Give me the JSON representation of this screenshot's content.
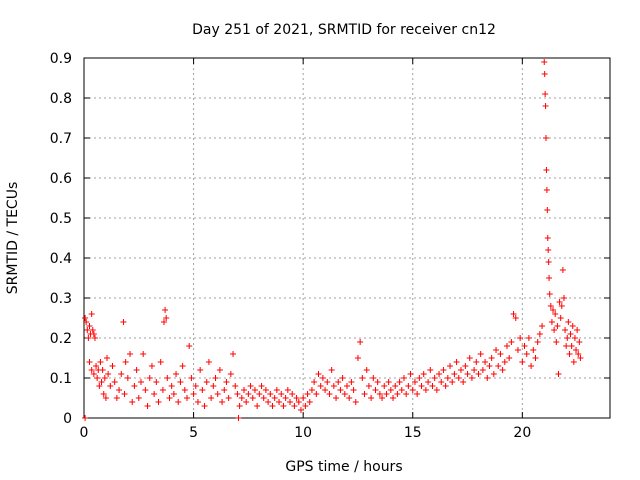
{
  "chart_data": {
    "type": "scatter",
    "title": "Day 251 of 2021, SRMTID for receiver cn12",
    "xlabel": "GPS time / hours",
    "ylabel": "SRMTID / TECUs",
    "xlim": [
      0,
      24
    ],
    "ylim": [
      0,
      0.9
    ],
    "xticks": [
      0,
      5,
      10,
      15,
      20
    ],
    "yticks": [
      0,
      0.1,
      0.2,
      0.3,
      0.4,
      0.5,
      0.6,
      0.7,
      0.8,
      0.9
    ],
    "xtick_labels": [
      "0",
      "5",
      "10",
      "15",
      "20"
    ],
    "ytick_labels": [
      "0",
      "0.1",
      "0.2",
      "0.3",
      "0.4",
      "0.5",
      "0.6",
      "0.7",
      "0.8",
      "0.9"
    ],
    "grid": true,
    "marker": "+",
    "series": [
      {
        "name": "SRMTID",
        "color": "#ff0000",
        "points": [
          [
            0.05,
            0.25
          ],
          [
            0.1,
            0.24
          ],
          [
            0.15,
            0.22
          ],
          [
            0.2,
            0.2
          ],
          [
            0.25,
            0.23
          ],
          [
            0.3,
            0.21
          ],
          [
            0.35,
            0.26
          ],
          [
            0.4,
            0.22
          ],
          [
            0.45,
            0.21
          ],
          [
            0.5,
            0.2
          ],
          [
            0.25,
            0.14
          ],
          [
            0.35,
            0.12
          ],
          [
            0.45,
            0.11
          ],
          [
            0.55,
            0.13
          ],
          [
            0.6,
            0.1
          ],
          [
            0.65,
            0.12
          ],
          [
            0.7,
            0.08
          ],
          [
            0.75,
            0.14
          ],
          [
            0.8,
            0.09
          ],
          [
            0.85,
            0.12
          ],
          [
            0.9,
            0.06
          ],
          [
            0.95,
            0.1
          ],
          [
            1.0,
            0.05
          ],
          [
            1.05,
            0.15
          ],
          [
            1.1,
            0.11
          ],
          [
            1.2,
            0.08
          ],
          [
            1.3,
            0.13
          ],
          [
            1.4,
            0.09
          ],
          [
            1.5,
            0.05
          ],
          [
            1.6,
            0.07
          ],
          [
            1.7,
            0.11
          ],
          [
            1.8,
            0.24
          ],
          [
            1.85,
            0.06
          ],
          [
            1.9,
            0.14
          ],
          [
            2.0,
            0.1
          ],
          [
            2.1,
            0.16
          ],
          [
            2.2,
            0.04
          ],
          [
            2.3,
            0.08
          ],
          [
            2.4,
            0.12
          ],
          [
            2.5,
            0.05
          ],
          [
            2.6,
            0.09
          ],
          [
            2.7,
            0.16
          ],
          [
            2.8,
            0.07
          ],
          [
            2.9,
            0.03
          ],
          [
            3.0,
            0.1
          ],
          [
            3.1,
            0.13
          ],
          [
            3.2,
            0.06
          ],
          [
            3.3,
            0.09
          ],
          [
            3.4,
            0.04
          ],
          [
            3.5,
            0.14
          ],
          [
            3.6,
            0.07
          ],
          [
            3.65,
            0.24
          ],
          [
            3.7,
            0.27
          ],
          [
            3.75,
            0.25
          ],
          [
            3.8,
            0.1
          ],
          [
            3.9,
            0.05
          ],
          [
            4.0,
            0.08
          ],
          [
            4.1,
            0.06
          ],
          [
            4.2,
            0.11
          ],
          [
            4.3,
            0.04
          ],
          [
            4.4,
            0.09
          ],
          [
            4.5,
            0.13
          ],
          [
            4.6,
            0.07
          ],
          [
            4.7,
            0.05
          ],
          [
            4.8,
            0.18
          ],
          [
            4.9,
            0.1
          ],
          [
            5.0,
            0.06
          ],
          [
            5.1,
            0.08
          ],
          [
            5.2,
            0.04
          ],
          [
            5.3,
            0.12
          ],
          [
            5.4,
            0.07
          ],
          [
            5.5,
            0.03
          ],
          [
            5.6,
            0.09
          ],
          [
            5.7,
            0.14
          ],
          [
            5.8,
            0.05
          ],
          [
            5.9,
            0.08
          ],
          [
            6.0,
            0.1
          ],
          [
            6.1,
            0.06
          ],
          [
            6.2,
            0.12
          ],
          [
            6.3,
            0.04
          ],
          [
            6.4,
            0.07
          ],
          [
            6.5,
            0.09
          ],
          [
            6.6,
            0.05
          ],
          [
            6.7,
            0.11
          ],
          [
            6.8,
            0.16
          ],
          [
            6.9,
            0.08
          ],
          [
            7.0,
            0.06
          ],
          [
            7.1,
            0.03
          ],
          [
            7.2,
            0.05
          ],
          [
            7.3,
            0.07
          ],
          [
            7.4,
            0.04
          ],
          [
            7.5,
            0.06
          ],
          [
            7.6,
            0.08
          ],
          [
            7.7,
            0.05
          ],
          [
            7.8,
            0.07
          ],
          [
            7.9,
            0.03
          ],
          [
            8.0,
            0.06
          ],
          [
            8.1,
            0.08
          ],
          [
            8.2,
            0.05
          ],
          [
            8.3,
            0.07
          ],
          [
            8.4,
            0.04
          ],
          [
            8.5,
            0.06
          ],
          [
            8.6,
            0.03
          ],
          [
            8.7,
            0.05
          ],
          [
            8.8,
            0.07
          ],
          [
            8.9,
            0.04
          ],
          [
            9.0,
            0.06
          ],
          [
            9.1,
            0.03
          ],
          [
            9.2,
            0.05
          ],
          [
            9.3,
            0.07
          ],
          [
            9.4,
            0.04
          ],
          [
            9.5,
            0.06
          ],
          [
            9.6,
            0.03
          ],
          [
            9.7,
            0.05
          ],
          [
            9.8,
            0.04
          ],
          [
            9.9,
            0.02
          ],
          [
            10.0,
            0.05
          ],
          [
            10.1,
            0.03
          ],
          [
            10.2,
            0.06
          ],
          [
            10.3,
            0.04
          ],
          [
            10.4,
            0.07
          ],
          [
            10.5,
            0.09
          ],
          [
            10.6,
            0.06
          ],
          [
            10.7,
            0.11
          ],
          [
            10.8,
            0.08
          ],
          [
            10.9,
            0.1
          ],
          [
            11.0,
            0.07
          ],
          [
            11.1,
            0.09
          ],
          [
            11.2,
            0.06
          ],
          [
            11.3,
            0.12
          ],
          [
            11.4,
            0.08
          ],
          [
            11.5,
            0.05
          ],
          [
            11.6,
            0.09
          ],
          [
            11.7,
            0.07
          ],
          [
            11.8,
            0.1
          ],
          [
            11.9,
            0.06
          ],
          [
            12.0,
            0.08
          ],
          [
            12.1,
            0.05
          ],
          [
            12.2,
            0.09
          ],
          [
            12.3,
            0.07
          ],
          [
            12.4,
            0.04
          ],
          [
            12.5,
            0.15
          ],
          [
            12.6,
            0.19
          ],
          [
            12.7,
            0.1
          ],
          [
            12.8,
            0.06
          ],
          [
            12.9,
            0.12
          ],
          [
            13.0,
            0.08
          ],
          [
            13.1,
            0.05
          ],
          [
            13.2,
            0.1
          ],
          [
            13.3,
            0.07
          ],
          [
            13.4,
            0.09
          ],
          [
            13.5,
            0.06
          ],
          [
            13.6,
            0.05
          ],
          [
            13.7,
            0.08
          ],
          [
            13.8,
            0.06
          ],
          [
            13.9,
            0.09
          ],
          [
            14.0,
            0.07
          ],
          [
            14.1,
            0.05
          ],
          [
            14.2,
            0.08
          ],
          [
            14.3,
            0.06
          ],
          [
            14.4,
            0.09
          ],
          [
            14.5,
            0.07
          ],
          [
            14.6,
            0.1
          ],
          [
            14.7,
            0.06
          ],
          [
            14.8,
            0.08
          ],
          [
            14.9,
            0.11
          ],
          [
            15.0,
            0.07
          ],
          [
            15.1,
            0.09
          ],
          [
            15.2,
            0.06
          ],
          [
            15.3,
            0.1
          ],
          [
            15.4,
            0.08
          ],
          [
            15.5,
            0.11
          ],
          [
            15.6,
            0.07
          ],
          [
            15.7,
            0.09
          ],
          [
            15.8,
            0.12
          ],
          [
            15.9,
            0.08
          ],
          [
            16.0,
            0.1
          ],
          [
            16.1,
            0.07
          ],
          [
            16.2,
            0.11
          ],
          [
            16.3,
            0.09
          ],
          [
            16.4,
            0.12
          ],
          [
            16.5,
            0.08
          ],
          [
            16.6,
            0.1
          ],
          [
            16.7,
            0.13
          ],
          [
            16.8,
            0.09
          ],
          [
            16.9,
            0.11
          ],
          [
            17.0,
            0.14
          ],
          [
            17.1,
            0.1
          ],
          [
            17.2,
            0.12
          ],
          [
            17.3,
            0.09
          ],
          [
            17.4,
            0.13
          ],
          [
            17.5,
            0.11
          ],
          [
            17.6,
            0.15
          ],
          [
            17.7,
            0.1
          ],
          [
            17.8,
            0.12
          ],
          [
            17.9,
            0.14
          ],
          [
            18.0,
            0.11
          ],
          [
            18.1,
            0.16
          ],
          [
            18.2,
            0.12
          ],
          [
            18.3,
            0.14
          ],
          [
            18.4,
            0.1
          ],
          [
            18.5,
            0.13
          ],
          [
            18.6,
            0.15
          ],
          [
            18.7,
            0.11
          ],
          [
            18.8,
            0.17
          ],
          [
            18.9,
            0.13
          ],
          [
            19.0,
            0.16
          ],
          [
            19.1,
            0.12
          ],
          [
            19.2,
            0.14
          ],
          [
            19.3,
            0.18
          ],
          [
            19.4,
            0.15
          ],
          [
            19.5,
            0.19
          ],
          [
            19.6,
            0.26
          ],
          [
            19.7,
            0.25
          ],
          [
            19.8,
            0.17
          ],
          [
            19.9,
            0.2
          ],
          [
            20.0,
            0.14
          ],
          [
            20.1,
            0.18
          ],
          [
            20.2,
            0.16
          ],
          [
            20.3,
            0.2
          ],
          [
            20.4,
            0.13
          ],
          [
            20.5,
            0.17
          ],
          [
            20.6,
            0.15
          ],
          [
            20.7,
            0.19
          ],
          [
            20.8,
            0.21
          ],
          [
            20.9,
            0.23
          ],
          [
            21.0,
            0.89
          ],
          [
            21.02,
            0.86
          ],
          [
            21.04,
            0.81
          ],
          [
            21.06,
            0.78
          ],
          [
            21.08,
            0.7
          ],
          [
            21.1,
            0.62
          ],
          [
            21.12,
            0.57
          ],
          [
            21.14,
            0.52
          ],
          [
            21.16,
            0.45
          ],
          [
            21.18,
            0.42
          ],
          [
            21.2,
            0.39
          ],
          [
            21.22,
            0.35
          ],
          [
            21.25,
            0.31
          ],
          [
            21.3,
            0.28
          ],
          [
            21.35,
            0.24
          ],
          [
            21.4,
            0.27
          ],
          [
            21.45,
            0.22
          ],
          [
            21.5,
            0.26
          ],
          [
            21.55,
            0.19
          ],
          [
            21.6,
            0.23
          ],
          [
            21.65,
            0.11
          ],
          [
            21.7,
            0.29
          ],
          [
            21.75,
            0.25
          ],
          [
            21.8,
            0.28
          ],
          [
            21.85,
            0.37
          ],
          [
            21.9,
            0.3
          ],
          [
            21.95,
            0.22
          ],
          [
            22.0,
            0.18
          ],
          [
            22.05,
            0.2
          ],
          [
            22.1,
            0.24
          ],
          [
            22.15,
            0.16
          ],
          [
            22.2,
            0.21
          ],
          [
            22.25,
            0.18
          ],
          [
            22.3,
            0.23
          ],
          [
            22.35,
            0.14
          ],
          [
            22.4,
            0.2
          ],
          [
            22.45,
            0.17
          ],
          [
            22.5,
            0.22
          ],
          [
            22.55,
            0.16
          ],
          [
            22.6,
            0.19
          ],
          [
            22.65,
            0.15
          ],
          [
            0.05,
            0.0
          ],
          [
            7.05,
            0.0
          ]
        ]
      }
    ]
  }
}
